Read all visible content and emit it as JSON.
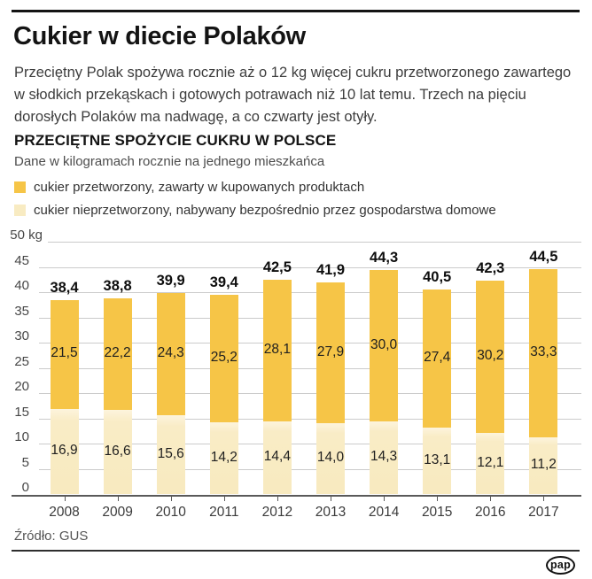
{
  "page": {
    "title": "Cukier w diecie Polaków",
    "intro": "Przeciętny Polak spożywa rocznie aż o 12 kg więcej cukru przetworzonego zawartego w słodkich przekąskach i gotowych potrawach niż 10 lat temu. Trzech na pięciu dorosłych Polaków ma nadwagę, a co czwarty jest otyły.",
    "source": "Źródło: GUS",
    "logo_text": "pap"
  },
  "chart": {
    "heading": "PRZECIĘTNE SPOŻYCIE CUKRU W POLSCE",
    "subheading": "Dane w kilogramach rocznie na jednego mieszkańca"
  },
  "chart_data": {
    "type": "bar",
    "stacked": true,
    "title": "PRZECIĘTNE SPOŻYCIE CUKRU W POLSCE",
    "subtitle": "Dane w kilogramach rocznie na jednego mieszkańca",
    "unit": "kg",
    "categories": [
      "2008",
      "2009",
      "2010",
      "2011",
      "2012",
      "2013",
      "2014",
      "2015",
      "2016",
      "2017"
    ],
    "series": [
      {
        "name": "cukier przetworzony, zawarty w kupowanych produktach",
        "color": "#f6c547",
        "values": [
          21.5,
          22.2,
          24.3,
          25.2,
          28.1,
          27.9,
          30.0,
          27.4,
          30.2,
          33.3
        ]
      },
      {
        "name": "cukier nieprzetworzony, nabywany bezpośrednio przez gospodarstwa domowe",
        "color": "#f8ebc2",
        "values": [
          16.9,
          16.6,
          15.6,
          14.2,
          14.4,
          14.0,
          14.3,
          13.1,
          12.1,
          11.2
        ]
      }
    ],
    "totals": [
      38.4,
      38.8,
      39.9,
      39.4,
      42.5,
      41.9,
      44.3,
      40.5,
      42.3,
      44.5
    ],
    "yticks": [
      0,
      5,
      10,
      15,
      20,
      25,
      30,
      35,
      40,
      45,
      50
    ],
    "ytick_top_label": "50 kg",
    "ylim": [
      0,
      50
    ],
    "grid": true,
    "legend_position": "top-left",
    "decimal_separator": ","
  }
}
